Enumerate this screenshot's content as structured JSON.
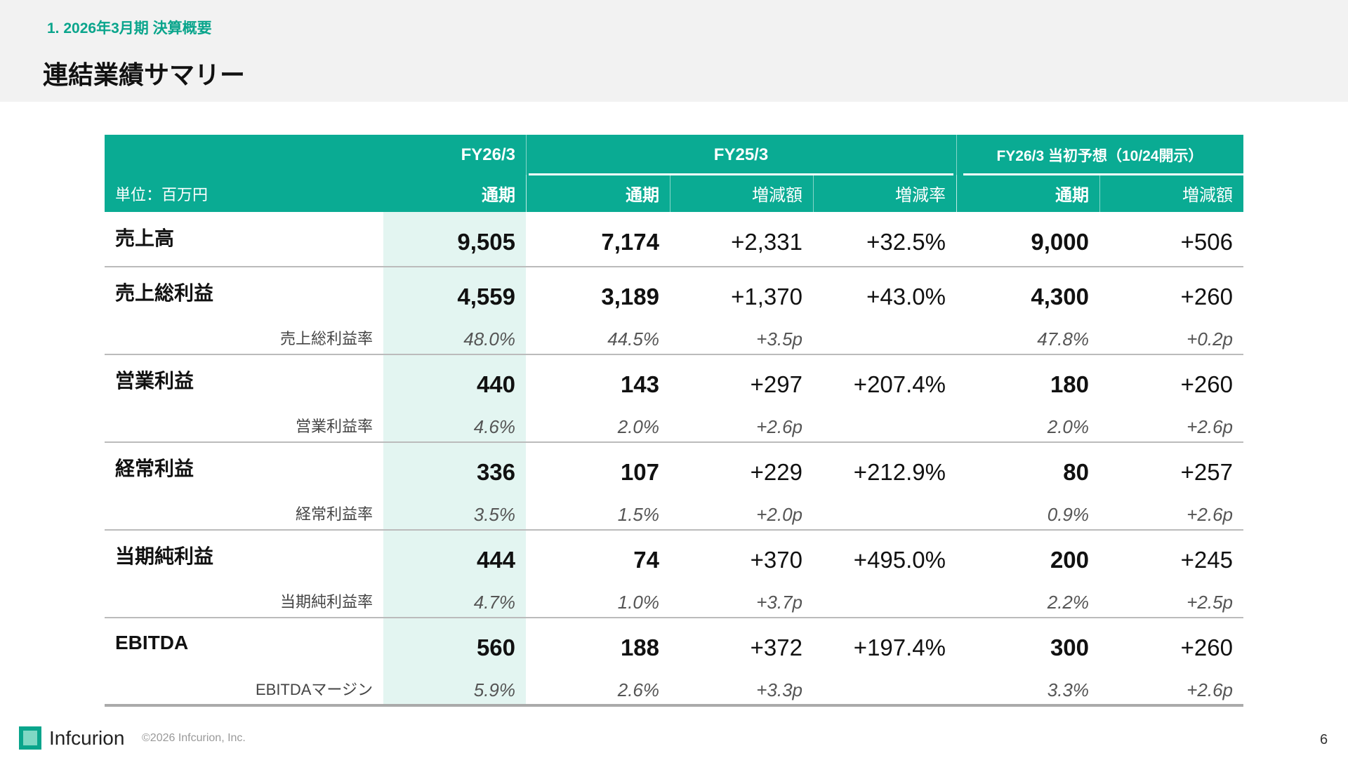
{
  "header": {
    "section": "1. 2026年3月期 決算概要",
    "title": "連結業績サマリー"
  },
  "table": {
    "groups": [
      "FY26/3",
      "FY25/3",
      "FY26/3 当初予想（10/24開示）"
    ],
    "unit": "単位：百万円",
    "columns": [
      "通期",
      "通期",
      "増減額",
      "増減率",
      "通期",
      "増減額"
    ],
    "rows": [
      {
        "label": "売上高",
        "values": [
          "9,505",
          "7,174",
          "+2,331",
          "+32.5%",
          "9,000",
          "+506"
        ]
      },
      {
        "label": "売上総利益",
        "values": [
          "4,559",
          "3,189",
          "+1,370",
          "+43.0%",
          "4,300",
          "+260"
        ],
        "sub": {
          "label": "売上総利益率",
          "values": [
            "48.0%",
            "44.5%",
            "+3.5p",
            null,
            "47.8%",
            "+0.2p"
          ]
        }
      },
      {
        "label": "営業利益",
        "values": [
          "440",
          "143",
          "+297",
          "+207.4%",
          "180",
          "+260"
        ],
        "sub": {
          "label": "営業利益率",
          "values": [
            "4.6%",
            "2.0%",
            "+2.6p",
            null,
            "2.0%",
            "+2.6p"
          ]
        }
      },
      {
        "label": "経常利益",
        "values": [
          "336",
          "107",
          "+229",
          "+212.9%",
          "80",
          "+257"
        ],
        "sub": {
          "label": "経常利益率",
          "values": [
            "3.5%",
            "1.5%",
            "+2.0p",
            null,
            "0.9%",
            "+2.6p"
          ]
        }
      },
      {
        "label": "当期純利益",
        "values": [
          "444",
          "74",
          "+370",
          "+495.0%",
          "200",
          "+245"
        ],
        "sub": {
          "label": "当期純利益率",
          "values": [
            "4.7%",
            "1.0%",
            "+3.7p",
            null,
            "2.2%",
            "+2.5p"
          ]
        }
      },
      {
        "label": "EBITDA",
        "values": [
          "560",
          "188",
          "+372",
          "+197.4%",
          "300",
          "+260"
        ],
        "sub": {
          "label": "EBITDAマージン",
          "values": [
            "5.9%",
            "2.6%",
            "+3.3p",
            null,
            "3.3%",
            "+2.6p"
          ]
        }
      }
    ]
  },
  "footer": {
    "company": "Infcurion",
    "copyright": "©2026 Infcurion, Inc.",
    "page": "6"
  }
}
